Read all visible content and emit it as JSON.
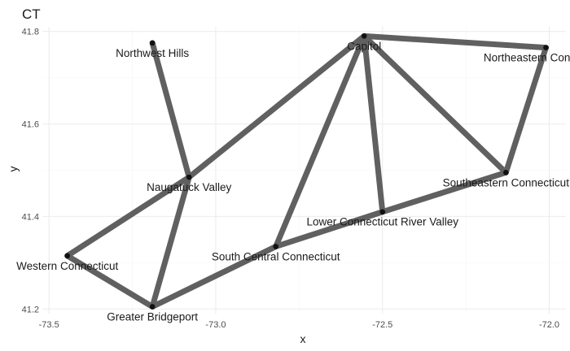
{
  "chart_data": {
    "type": "network",
    "title": "CT",
    "xlabel": "x",
    "ylabel": "y",
    "xlim": [
      -73.52,
      -71.95
    ],
    "ylim": [
      41.19,
      41.81
    ],
    "x_ticks": [
      -73.5,
      -73.0,
      -72.5,
      -72.0
    ],
    "x_tick_labels": [
      "-73.5",
      "-73.0",
      "-72.5",
      "-72.0"
    ],
    "y_ticks": [
      41.2,
      41.4,
      41.6,
      41.8
    ],
    "y_tick_labels": [
      "41.2",
      "41.4",
      "41.6",
      "41.8"
    ],
    "grid": true,
    "nodes": [
      {
        "id": "northwest",
        "label": "Northwest Hills",
        "x": -73.19,
        "y": 41.775
      },
      {
        "id": "capitol",
        "label": "Capitol",
        "x": -72.555,
        "y": 41.79
      },
      {
        "id": "northeast",
        "label": "Northeastern Connecticut",
        "x": -72.01,
        "y": 41.765
      },
      {
        "id": "naugatuck",
        "label": "Naugatuck Valley",
        "x": -73.08,
        "y": 41.485
      },
      {
        "id": "southeast",
        "label": "Southeastern Connecticut",
        "x": -72.13,
        "y": 41.495
      },
      {
        "id": "lowerct",
        "label": "Lower Connecticut River Valley",
        "x": -72.5,
        "y": 41.41
      },
      {
        "id": "southcentral",
        "label": "South Central Connecticut",
        "x": -72.82,
        "y": 41.335
      },
      {
        "id": "western",
        "label": "Western Connecticut",
        "x": -73.445,
        "y": 41.315
      },
      {
        "id": "bridgeport",
        "label": "Greater Bridgeport",
        "x": -73.19,
        "y": 41.205
      }
    ],
    "edges": [
      [
        "northwest",
        "naugatuck"
      ],
      [
        "naugatuck",
        "capitol"
      ],
      [
        "naugatuck",
        "western"
      ],
      [
        "naugatuck",
        "bridgeport"
      ],
      [
        "western",
        "bridgeport"
      ],
      [
        "bridgeport",
        "southcentral"
      ],
      [
        "southcentral",
        "lowerct"
      ],
      [
        "southcentral",
        "capitol"
      ],
      [
        "lowerct",
        "capitol"
      ],
      [
        "lowerct",
        "southeast"
      ],
      [
        "capitol",
        "southeast"
      ],
      [
        "capitol",
        "northeast"
      ],
      [
        "northeast",
        "southeast"
      ]
    ]
  }
}
